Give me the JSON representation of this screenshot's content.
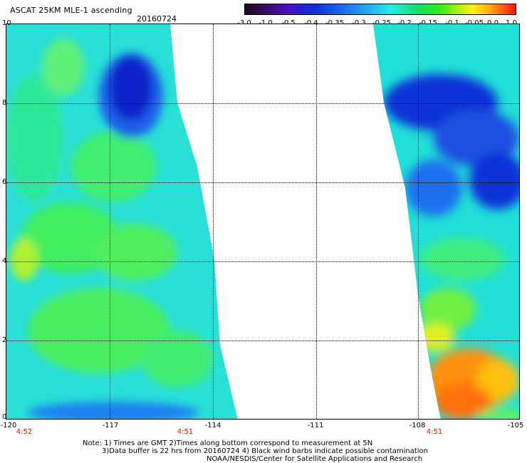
{
  "header": {
    "title": "ASCAT 25KM MLE-1 ascending",
    "date": "20160724"
  },
  "colorbar": {
    "labels": [
      "-3.0",
      "-1.0",
      "-0.5",
      "-0.4",
      "-0.35",
      "-0.3",
      "-0.25",
      "-0.2",
      "-0.15",
      "-0.1",
      "-0.05",
      "0.0",
      "1.0"
    ]
  },
  "axes": {
    "y_labels": [
      "10",
      "8",
      "6",
      "4",
      "2",
      "0"
    ],
    "x_labels": [
      "-120",
      "-117",
      "-114",
      "-111",
      "-108",
      "-105"
    ],
    "time_labels": [
      "4:52",
      "4:51",
      "4:51"
    ]
  },
  "notes": {
    "line1": "Note: 1) Times are GMT 2)Times along bottom correspond to measurement at 5N",
    "line2": "3)Data buffer is 22 hrs from 20160724 4) Black wind barbs indicate possible contamination",
    "line3": "NOAA/NESDIS/Center for Satellite Applications and Research"
  },
  "colors": {
    "dark_blue": "#1020d8",
    "blue": "#1a70f0",
    "cyan": "#20f0e8",
    "green": "#30f040",
    "yellow": "#e0f020",
    "orange": "#ff8c10",
    "time_label": "#d02000"
  }
}
